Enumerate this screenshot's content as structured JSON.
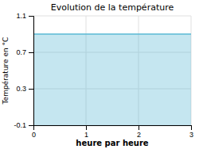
{
  "chart_data": {
    "type": "area",
    "title": "Evolution de la température",
    "xlabel": "heure par heure",
    "ylabel": "Température en °C",
    "x": [
      0,
      3
    ],
    "values": [
      0.9,
      0.9
    ],
    "color": "#5ab8d4",
    "xlim": [
      0,
      3
    ],
    "ylim": [
      -0.1,
      1.1
    ],
    "xticks": [
      0,
      1,
      2,
      3
    ],
    "yticks": [
      -0.1,
      0.3,
      0.7,
      1.1
    ],
    "grid": true
  }
}
